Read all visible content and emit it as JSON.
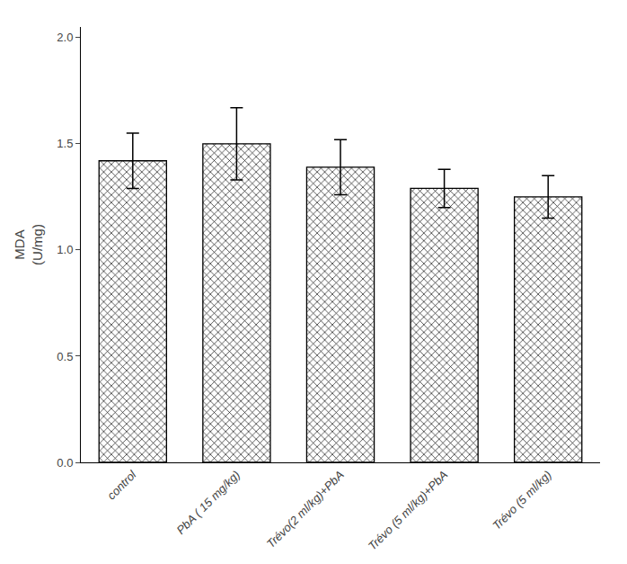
{
  "chart_data": {
    "type": "bar",
    "categories": [
      "control",
      "PbA ( 15 mg/kg)",
      "Trévo(2 ml/kg)+PbA",
      "Trévo (5 ml/kg)+PbA",
      "Trévo (5 ml/kg)"
    ],
    "values": [
      1.42,
      1.5,
      1.39,
      1.29,
      1.25
    ],
    "errors": [
      0.13,
      0.17,
      0.13,
      0.09,
      0.1
    ],
    "color": "#ffffff",
    "ylabel": "MDA\n(U/mg)",
    "ylim": [
      0,
      2.05
    ],
    "yticks": [
      {
        "value": 0,
        "label": "0.0"
      },
      0.5,
      {
        "value": 1,
        "label": "1.0"
      },
      1.5,
      {
        "value": 2,
        "label": "2.0"
      }
    ],
    "grid": false
  }
}
